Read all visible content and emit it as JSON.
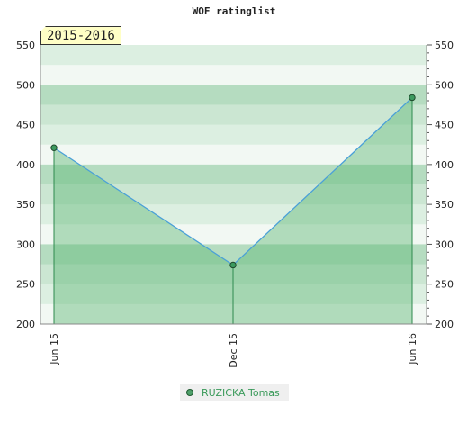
{
  "chart_data": {
    "type": "area",
    "title": "WOF ratinglist",
    "period_label": "2015-2016",
    "categories": [
      "Jun 15",
      "Dec 15",
      "Jun 16"
    ],
    "series": [
      {
        "name": "RUZICKA Tomas",
        "values": [
          421,
          274,
          484
        ]
      }
    ],
    "ylim": [
      200,
      550
    ],
    "y_ticks": [
      200,
      250,
      300,
      350,
      400,
      450,
      500,
      550
    ],
    "y_ticks_right": [
      200,
      250,
      300,
      350,
      400,
      450,
      500,
      550
    ],
    "grid": true,
    "legend_position": "bottom-center",
    "colors": {
      "line": "#4aa0d8",
      "fill": "#5fb878",
      "point": "#3c9a5f",
      "band_light": "#f2f8f3",
      "band_dark": "#cfe8d6"
    }
  }
}
